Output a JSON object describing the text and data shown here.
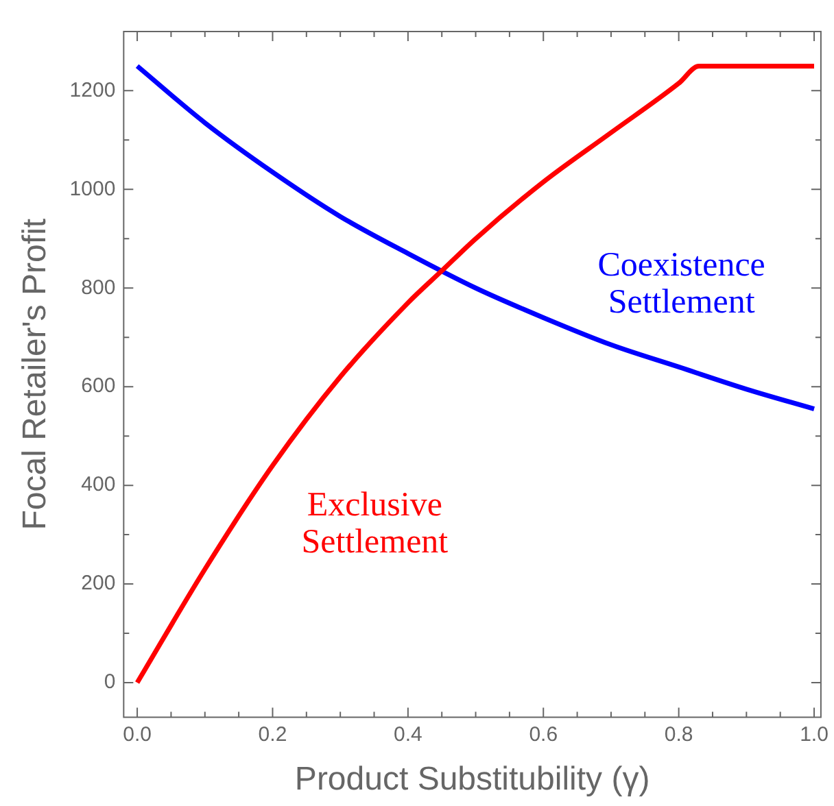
{
  "chart_data": {
    "type": "line",
    "xlabel": "Product Substitubility (γ)",
    "ylabel": "Focal Retailer's Profit",
    "xlim": [
      -0.02,
      1.01
    ],
    "ylim": [
      -70,
      1320
    ],
    "xticks": [
      {
        "value": 0,
        "label": "0.0"
      },
      {
        "value": 0.05,
        "label": null
      },
      {
        "value": 0.1,
        "label": null
      },
      {
        "value": 0.15,
        "label": null
      },
      0.2,
      {
        "value": 0.25,
        "label": null
      },
      {
        "value": 0.3,
        "label": null
      },
      {
        "value": 0.35,
        "label": null
      },
      0.4,
      {
        "value": 0.45,
        "label": null
      },
      {
        "value": 0.5,
        "label": null
      },
      {
        "value": 0.55,
        "label": null
      },
      0.6,
      {
        "value": 0.65,
        "label": null
      },
      {
        "value": 0.7,
        "label": null
      },
      {
        "value": 0.75,
        "label": null
      },
      0.8,
      {
        "value": 0.85,
        "label": null
      },
      {
        "value": 0.9,
        "label": null
      },
      {
        "value": 0.95,
        "label": null
      },
      {
        "value": 1,
        "label": "1.0"
      }
    ],
    "yticks": [
      0,
      {
        "value": 100,
        "label": null
      },
      200,
      {
        "value": 300,
        "label": null
      },
      400,
      {
        "value": 500,
        "label": null
      },
      600,
      {
        "value": 700,
        "label": null
      },
      800,
      {
        "value": 900,
        "label": null
      },
      1000,
      {
        "value": 1100,
        "label": null
      },
      1200
    ],
    "grid": false,
    "legend": false,
    "marker": "none",
    "line_style": "solid",
    "series": [
      {
        "name": "Exclusive Settlement",
        "color": "#ff0000",
        "x": [
          0,
          0.1,
          0.2,
          0.3,
          0.4,
          0.45,
          0.5,
          0.6,
          0.7,
          0.8,
          0.83,
          1.0
        ],
        "values": [
          0,
          230,
          440,
          620,
          770,
          835,
          900,
          1015,
          1115,
          1215,
          1250,
          1250
        ]
      },
      {
        "name": "Coexistence Settlement",
        "color": "#0000ff",
        "x": [
          0,
          0.1,
          0.2,
          0.3,
          0.4,
          0.5,
          0.6,
          0.7,
          0.8,
          0.9,
          1.0
        ],
        "values": [
          1250,
          1135,
          1035,
          945,
          870,
          800,
          740,
          685,
          640,
          595,
          555
        ]
      }
    ]
  }
}
